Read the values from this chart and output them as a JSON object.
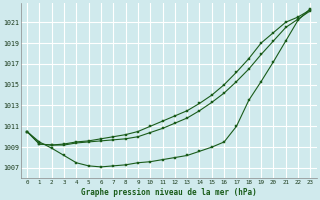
{
  "xlabel": "Graphe pression niveau de la mer (hPa)",
  "bg_color": "#d0eaed",
  "grid_color": "#b8d8dc",
  "line_color": "#1a5c1a",
  "marker_color": "#1a5c1a",
  "xlim": [
    -0.5,
    23.5
  ],
  "ylim": [
    1006.0,
    1022.8
  ],
  "yticks": [
    1007,
    1009,
    1011,
    1013,
    1015,
    1017,
    1019,
    1021
  ],
  "xticks": [
    0,
    1,
    2,
    3,
    4,
    5,
    6,
    7,
    8,
    9,
    10,
    11,
    12,
    13,
    14,
    15,
    16,
    17,
    18,
    19,
    20,
    21,
    22,
    23
  ],
  "series1": [
    1010.5,
    1009.3,
    1009.2,
    1009.3,
    1009.5,
    1009.6,
    1009.8,
    1010.0,
    1010.2,
    1010.5,
    1011.0,
    1011.5,
    1012.0,
    1012.5,
    1013.2,
    1014.0,
    1015.0,
    1016.2,
    1017.5,
    1019.0,
    1020.0,
    1021.0,
    1021.5,
    1022.2
  ],
  "series2": [
    1010.5,
    1009.3,
    1009.2,
    1009.2,
    1009.4,
    1009.5,
    1009.6,
    1009.7,
    1009.8,
    1010.0,
    1010.4,
    1010.8,
    1011.3,
    1011.8,
    1012.5,
    1013.3,
    1014.2,
    1015.3,
    1016.5,
    1017.9,
    1019.2,
    1020.5,
    1021.3,
    1022.1
  ],
  "series3": [
    1010.5,
    1009.5,
    1008.9,
    1008.2,
    1007.5,
    1007.2,
    1007.1,
    1007.2,
    1007.3,
    1007.5,
    1007.6,
    1007.8,
    1008.0,
    1008.2,
    1008.6,
    1009.0,
    1009.5,
    1011.0,
    1013.5,
    1015.3,
    1017.2,
    1019.2,
    1021.2,
    1022.3
  ]
}
